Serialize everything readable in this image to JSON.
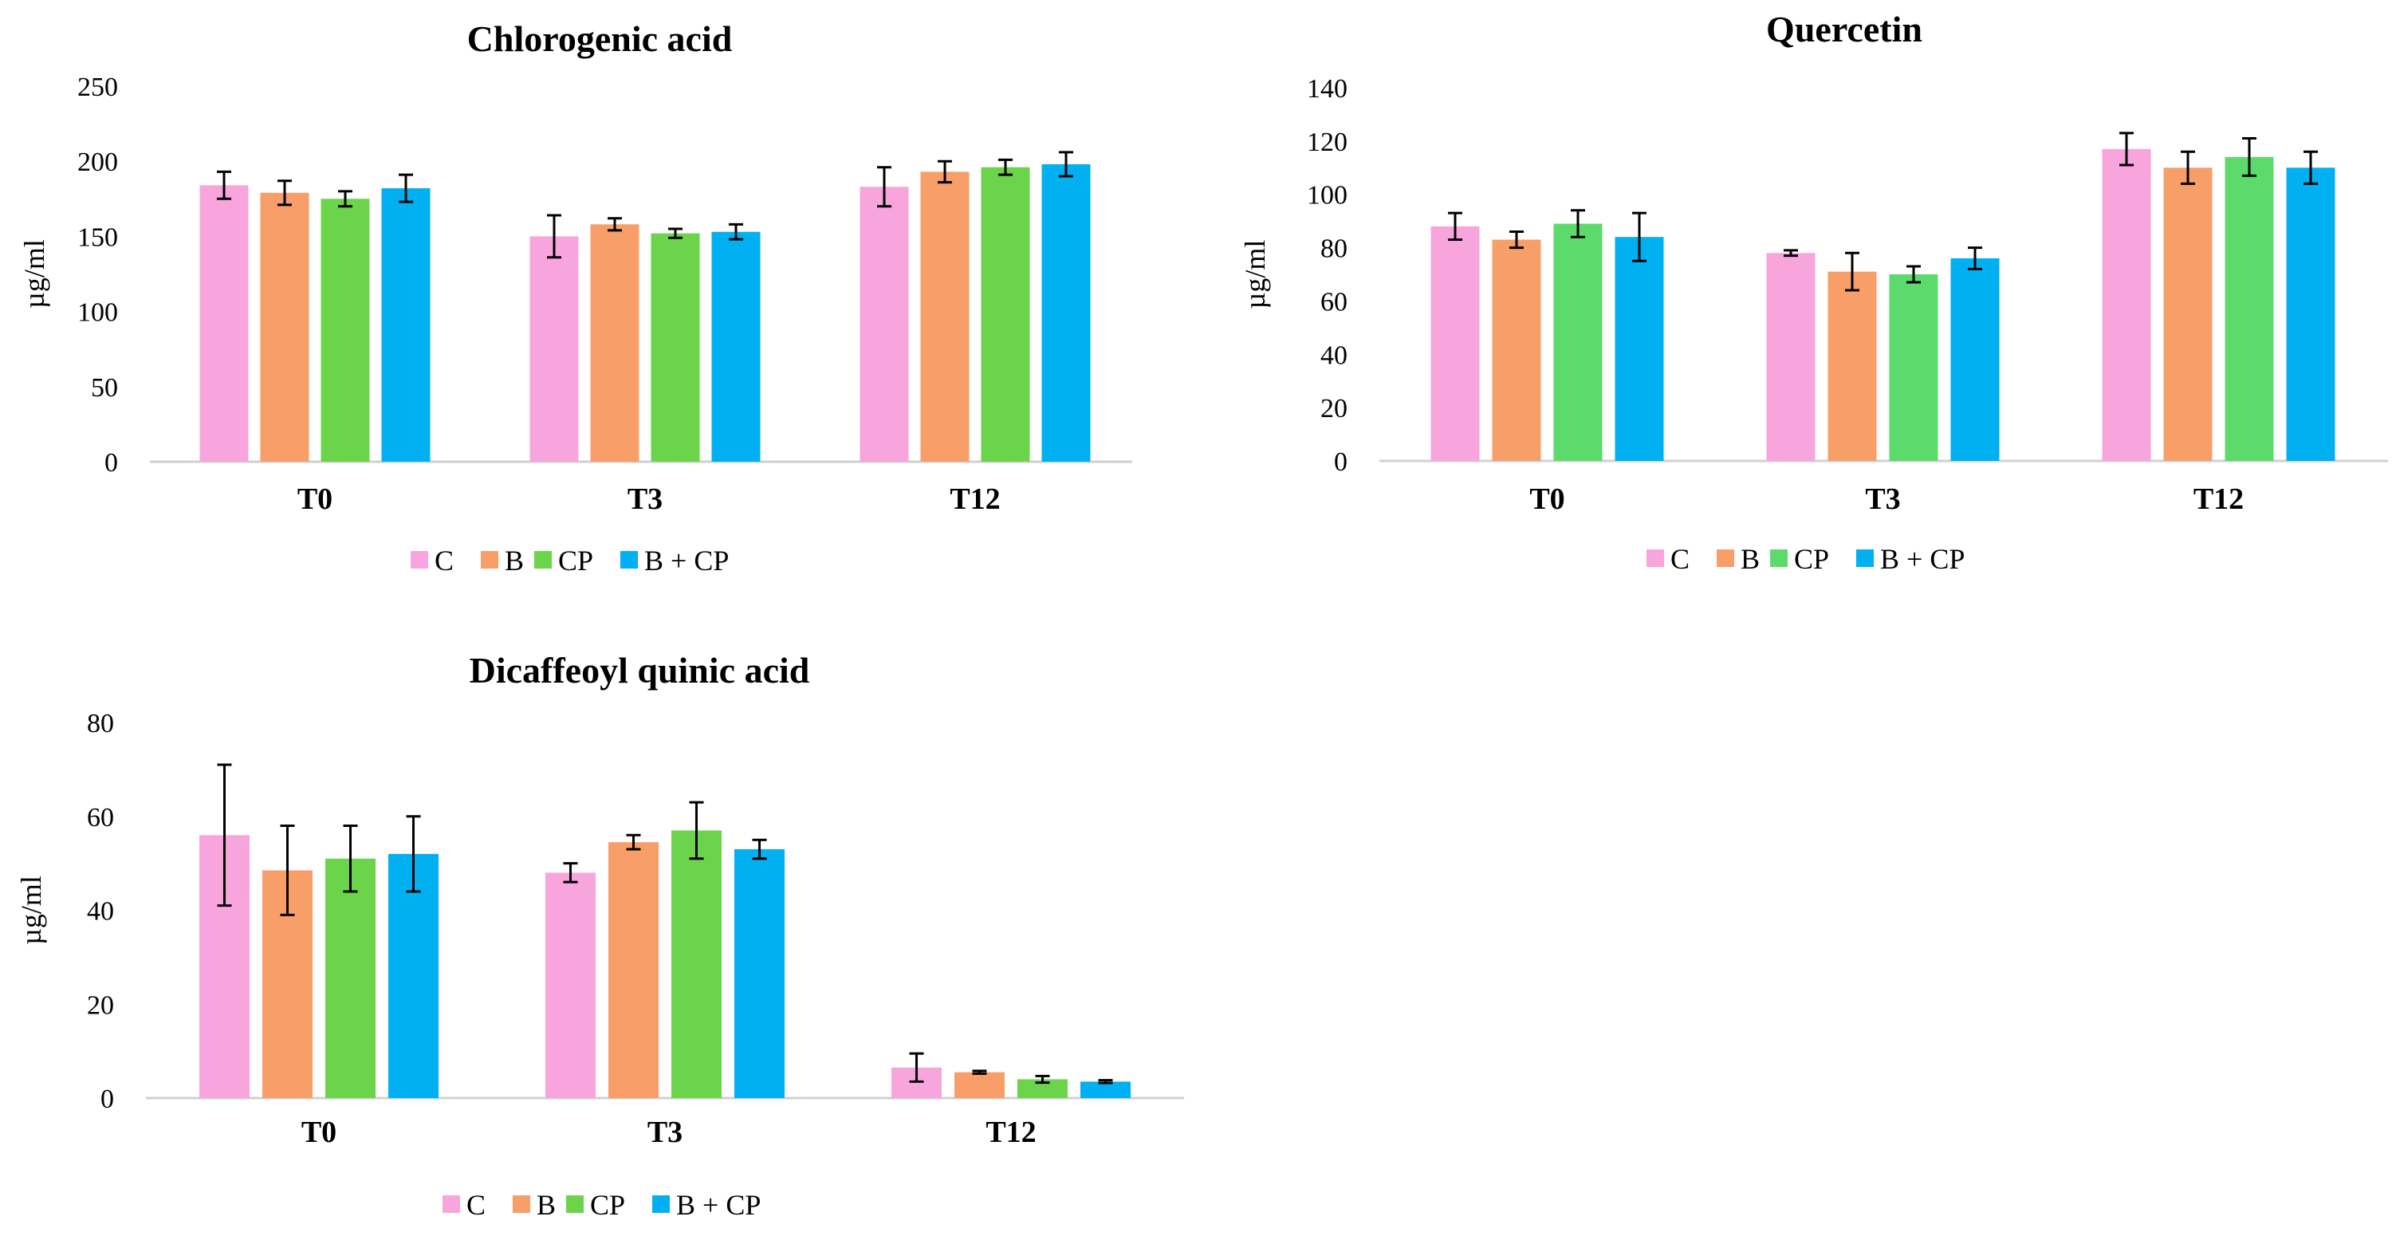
{
  "chart_data": [
    {
      "type": "bar",
      "title": "Chlorogenic acid",
      "ylabel": "µg/ml",
      "xlabel": "",
      "ylim": [
        0,
        250
      ],
      "yticks": [
        "0",
        "50",
        "100",
        "150",
        "200",
        "250"
      ],
      "categories": [
        "T0",
        "T3",
        "T12"
      ],
      "series": [
        {
          "name": "C",
          "color": "#F8A5DE",
          "values": [
            184,
            150,
            183
          ],
          "errors": [
            9,
            14,
            13
          ]
        },
        {
          "name": "B",
          "color": "#F89E69",
          "values": [
            179,
            158,
            193
          ],
          "errors": [
            8,
            4,
            7
          ]
        },
        {
          "name": "CP",
          "color": "#6CD44A",
          "values": [
            175,
            152,
            196
          ],
          "errors": [
            5,
            3,
            5
          ]
        },
        {
          "name": "B + CP",
          "color": "#00B0F0",
          "values": [
            182,
            153,
            198
          ],
          "errors": [
            9,
            5,
            8
          ]
        }
      ],
      "legend": "bottom"
    },
    {
      "type": "bar",
      "title": "Quercetin",
      "ylabel": "µg/ml",
      "xlabel": "",
      "ylim": [
        0,
        140
      ],
      "yticks": [
        "0",
        "20",
        "40",
        "60",
        "80",
        "100",
        "120",
        "140"
      ],
      "categories": [
        "T0",
        "T3",
        "T12"
      ],
      "series": [
        {
          "name": "C",
          "color": "#F8A5DE",
          "values": [
            88,
            78,
            117
          ],
          "errors": [
            5,
            1,
            6
          ]
        },
        {
          "name": "B",
          "color": "#F89E69",
          "values": [
            83,
            71,
            110
          ],
          "errors": [
            3,
            7,
            6
          ]
        },
        {
          "name": "CP",
          "color": "#5CDB6C",
          "values": [
            89,
            70,
            114
          ],
          "errors": [
            5,
            3,
            7
          ]
        },
        {
          "name": "B + CP",
          "color": "#00B0F0",
          "values": [
            84,
            76,
            110
          ],
          "errors": [
            9,
            4,
            6
          ]
        }
      ],
      "legend": "bottom"
    },
    {
      "type": "bar",
      "title": "Dicaffeoyl quinic acid",
      "ylabel": "µg/ml",
      "xlabel": "",
      "ylim": [
        0,
        80
      ],
      "yticks": [
        "0",
        "20",
        "40",
        "60",
        "80"
      ],
      "categories": [
        "T0",
        "T3",
        "T12"
      ],
      "series": [
        {
          "name": "C",
          "color": "#F8A5DE",
          "values": [
            56,
            48,
            6.5
          ],
          "errors": [
            15,
            2,
            3
          ]
        },
        {
          "name": "B",
          "color": "#F89E69",
          "values": [
            48.5,
            54.5,
            5.5
          ],
          "errors": [
            9.5,
            1.5,
            0.3
          ]
        },
        {
          "name": "CP",
          "color": "#6CD44A",
          "values": [
            51,
            57,
            4
          ],
          "errors": [
            7,
            6,
            0.7
          ]
        },
        {
          "name": "B + CP",
          "color": "#00B0F0",
          "values": [
            52,
            53,
            3.5
          ],
          "errors": [
            8,
            2,
            0.3
          ]
        }
      ],
      "legend": "bottom"
    }
  ]
}
